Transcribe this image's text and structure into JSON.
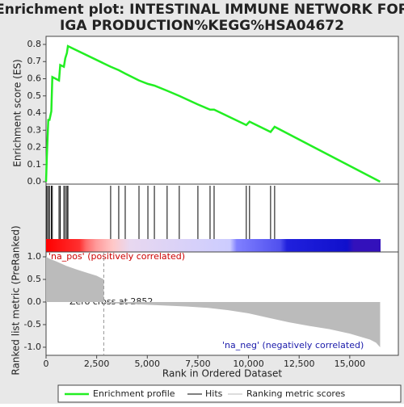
{
  "title": [
    "Enrichment plot: INTESTINAL IMMUNE NETWORK FOR",
    "IGA PRODUCTION%KEGG%HSA04672"
  ],
  "chart_data": [
    {
      "type": "line",
      "ylabel": "Enrichment score (ES)",
      "name": "Enrichment profile",
      "color": "#22ee22",
      "x": [
        0,
        40,
        110,
        170,
        260,
        310,
        640,
        700,
        880,
        950,
        1030,
        1080,
        3190,
        3590,
        3910,
        4590,
        5030,
        5350,
        5980,
        6580,
        7500,
        8100,
        8300,
        9890,
        10050,
        11090,
        11290,
        16500
      ],
      "values": [
        0,
        0.15,
        0.36,
        0.36,
        0.41,
        0.61,
        0.59,
        0.68,
        0.67,
        0.72,
        0.75,
        0.79,
        0.67,
        0.65,
        0.63,
        0.59,
        0.57,
        0.56,
        0.53,
        0.5,
        0.45,
        0.42,
        0.42,
        0.33,
        0.35,
        0.29,
        0.32,
        0
      ],
      "xlim": [
        0,
        17400
      ],
      "ylim": [
        -0.014,
        0.847
      ],
      "yticks": [
        {
          "value": 0,
          "label": "0.0"
        },
        0.1,
        0.2,
        0.3,
        0.4,
        0.5,
        0.6,
        0.7,
        0.8
      ]
    },
    {
      "type": "hits",
      "name": "Hits",
      "color": "#000000",
      "x": [
        40,
        110,
        170,
        260,
        310,
        640,
        700,
        880,
        950,
        1030,
        1080,
        3190,
        3590,
        3910,
        4590,
        5030,
        5350,
        5980,
        6580,
        7500,
        8100,
        8300,
        9890,
        10050,
        11090,
        11290
      ],
      "xlim": [
        0,
        17400
      ]
    },
    {
      "type": "area",
      "name": "Ranking metric scores",
      "color": "#bbbbbb",
      "ylabel": "Ranked list metric (PreRanked)",
      "xlabel": "Rank in Ordered Dataset",
      "x": [
        0,
        200,
        500,
        1000,
        1500,
        2000,
        2500,
        2851,
        2853,
        4000,
        5000,
        6000,
        7000,
        8000,
        9000,
        10000,
        11000,
        12000,
        13000,
        14000,
        15000,
        16000,
        16300,
        16500
      ],
      "values": [
        1.0,
        0.95,
        0.9,
        0.8,
        0.72,
        0.65,
        0.58,
        0.5,
        -0.02,
        -0.04,
        -0.06,
        -0.08,
        -0.1,
        -0.13,
        -0.18,
        -0.25,
        -0.35,
        -0.45,
        -0.53,
        -0.6,
        -0.7,
        -0.83,
        -0.9,
        -1.0
      ],
      "xlim": [
        0,
        17400
      ],
      "ylim": [
        -1.179,
        1.107
      ],
      "yticks": [
        {
          "value": 1,
          "label": "1.0"
        },
        0.5,
        {
          "value": 0,
          "label": "0.0"
        },
        -0.5,
        {
          "value": -1,
          "label": "-1.0"
        }
      ],
      "xticks": [
        0,
        {
          "value": 2500,
          "label": "2,500"
        },
        {
          "value": 5000,
          "label": "5,000"
        },
        {
          "value": 7500,
          "label": "7,500"
        },
        {
          "value": 10000,
          "label": "10,000"
        },
        {
          "value": 12500,
          "label": "12,500"
        },
        {
          "value": 15000,
          "label": "15,000"
        }
      ],
      "zero_cross": 2852,
      "annotations": [
        "'na_pos' (positively correlated)",
        "Zero cross at 2852",
        "'na_neg' (negatively correlated)"
      ]
    }
  ]
}
